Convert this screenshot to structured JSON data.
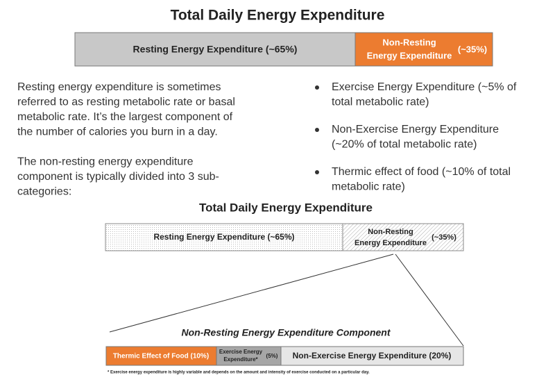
{
  "top_diagram": {
    "title": "Total Daily Energy Expenditure",
    "resting": "Resting Energy Expenditure (~65%)",
    "non_resting": [
      "Non-Resting",
      "Energy Expenditure"
    ],
    "non_resting_pct": "(~35%)"
  },
  "paragraphs": [
    [
      "Resting energy expenditure is sometimes",
      "referred to as resting metabolic rate or basal",
      "metabolic rate. It’s the largest component of",
      "the number of calories you burn in a day."
    ],
    [
      "The non-resting energy expenditure",
      "component is typically divided into 3 sub-",
      "categories:"
    ]
  ],
  "bullets": [
    [
      "Exercise Energy Expenditure (~5% of",
      "total metabolic rate)"
    ],
    [
      "Non-Exercise Energy Expenditure",
      "(~20% of total metabolic rate)"
    ],
    [
      "Thermic effect of food (~10% of total",
      "metabolic rate)"
    ]
  ],
  "bottom_diagram": {
    "title": "Total Daily Energy Expenditure",
    "resting": "Resting Energy Expenditure (~65%)",
    "non_resting": [
      "Non-Resting",
      "Energy Expenditure"
    ],
    "non_resting_pct": "(~35%)",
    "component_title": "Non-Resting Energy Expenditure Component",
    "thermic": "Thermic Effect of Food (10%)",
    "exercise": [
      "Exercise Energy",
      "Expenditure*"
    ],
    "exercise_pct": "(5%)",
    "non_exercise": "Non-Exercise Energy Expenditure (20%)",
    "footnote": "* Exercise energy expenditure is highly variable and depends on the amount and intensity of exercise conducted on a particular day."
  }
}
